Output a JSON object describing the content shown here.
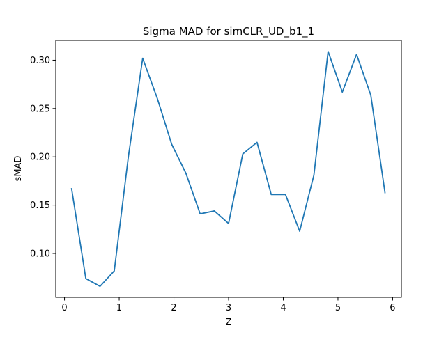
{
  "chart_data": {
    "type": "line",
    "title": "Sigma MAD for simCLR_UD_b1_1",
    "xlabel": "Z",
    "ylabel": "sMAD",
    "xlim": [
      -0.16,
      6.16
    ],
    "ylim": [
      0.0546,
      0.3205
    ],
    "xticks": [
      0,
      1,
      2,
      3,
      4,
      5,
      6
    ],
    "xtick_labels": [
      "0",
      "1",
      "2",
      "3",
      "4",
      "5",
      "6"
    ],
    "yticks": [
      0.1,
      0.15,
      0.2,
      0.25,
      0.3
    ],
    "ytick_labels": [
      "0.10",
      "0.15",
      "0.20",
      "0.25",
      "0.30"
    ],
    "grid": false,
    "legend": false,
    "series": [
      {
        "color": "#1f77b4",
        "x": [
          0.13,
          0.39,
          0.65,
          0.91,
          1.17,
          1.43,
          1.7,
          1.96,
          2.22,
          2.48,
          2.74,
          3.0,
          3.26,
          3.52,
          3.78,
          4.04,
          4.3,
          4.56,
          4.82,
          5.08,
          5.34,
          5.6,
          5.86
        ],
        "y": [
          0.167,
          0.074,
          0.066,
          0.082,
          0.201,
          0.302,
          0.26,
          0.213,
          0.183,
          0.141,
          0.144,
          0.131,
          0.203,
          0.215,
          0.161,
          0.161,
          0.123,
          0.181,
          0.309,
          0.267,
          0.306,
          0.264,
          0.163
        ]
      }
    ]
  }
}
